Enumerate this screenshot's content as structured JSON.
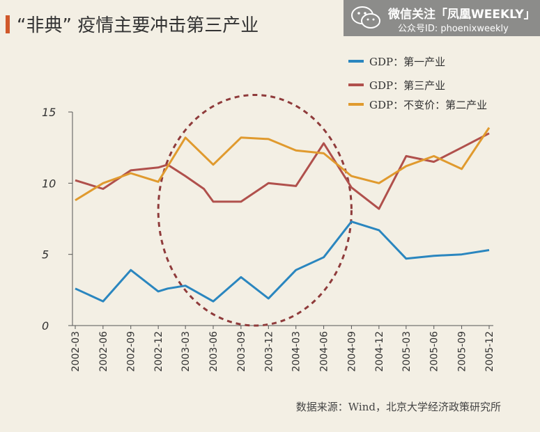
{
  "title": "“非典” 疫情主要冲击第三产业",
  "brand": {
    "name": "微信关注「凤凰WEEKLY」",
    "account": "公众号ID: phoenixweekly"
  },
  "source": "数据来源：Wind，北京大学经济政策研究所",
  "chart_data": {
    "type": "line",
    "title": "“非典” 疫情主要冲击第三产业",
    "xlabel": "",
    "ylabel": "",
    "ylim": [
      0,
      15
    ],
    "yticks": [
      0,
      5,
      10,
      15
    ],
    "grid": false,
    "legend": "top-right",
    "categories": [
      "2002-03",
      "2002-06",
      "2002-09",
      "2002-12",
      "2003-03",
      "2003-06",
      "2003-09",
      "2003-12",
      "2004-03",
      "2004-06",
      "2004-09",
      "2004-12",
      "2005-03",
      "2005-06",
      "2005-09",
      "2005-12"
    ],
    "series": [
      {
        "name": "GDP：第一产业",
        "color": "#2a86bf",
        "x": [
          "2002-03",
          "2002-06",
          "2002-09",
          "2002-12",
          "2003-01",
          "2003-03",
          "2003-06",
          "2003-09",
          "2003-12",
          "2004-03",
          "2004-06",
          "2004-09",
          "2004-12",
          "2005-03",
          "2005-06",
          "2005-09",
          "2005-12"
        ],
        "values": [
          2.6,
          1.7,
          3.9,
          2.4,
          2.6,
          2.8,
          1.7,
          3.4,
          1.9,
          3.9,
          4.8,
          7.3,
          6.7,
          4.7,
          4.9,
          5.0,
          5.3
        ]
      },
      {
        "name": "GDP：第三产业",
        "color": "#b0504c",
        "x": [
          "2002-03",
          "2002-06",
          "2002-09",
          "2002-12",
          "2003-01",
          "2003-03",
          "2003-05",
          "2003-06",
          "2003-09",
          "2003-12",
          "2004-03",
          "2004-06",
          "2004-09",
          "2004-12",
          "2005-03",
          "2005-06",
          "2005-09",
          "2005-12"
        ],
        "values": [
          10.2,
          9.6,
          10.9,
          11.1,
          11.3,
          10.5,
          9.6,
          8.7,
          8.7,
          10.0,
          9.8,
          12.8,
          9.7,
          8.2,
          11.9,
          11.5,
          12.5,
          13.5
        ]
      },
      {
        "name": "GDP：不变价：第二产业",
        "color": "#e09a2e",
        "x": [
          "2002-03",
          "2002-06",
          "2002-09",
          "2002-12",
          "2003-03",
          "2003-06",
          "2003-09",
          "2003-12",
          "2004-03",
          "2004-06",
          "2004-09",
          "2004-12",
          "2005-03",
          "2005-06",
          "2005-09",
          "2005-12"
        ],
        "values": [
          8.8,
          10.0,
          10.7,
          10.1,
          13.2,
          11.3,
          13.2,
          13.1,
          12.3,
          12.1,
          10.5,
          10.0,
          11.2,
          11.9,
          11.0,
          13.9
        ]
      }
    ],
    "annotations": [
      {
        "type": "dashed-ellipse",
        "color": "#8f3b3b",
        "x_range": [
          "2002-12",
          "2004-09"
        ],
        "y_range": [
          0,
          16.2
        ]
      }
    ]
  }
}
